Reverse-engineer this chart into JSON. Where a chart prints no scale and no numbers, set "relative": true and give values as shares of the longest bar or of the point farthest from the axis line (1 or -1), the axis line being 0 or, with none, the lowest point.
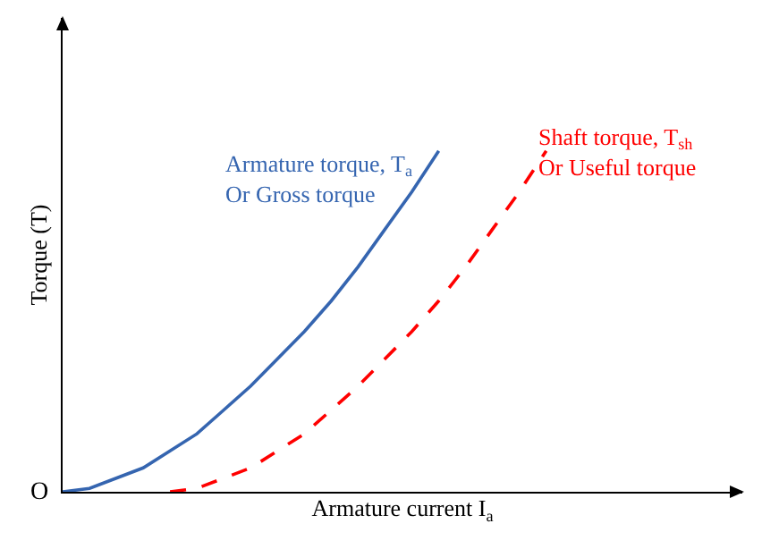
{
  "chart_data": {
    "type": "line",
    "relative": true,
    "xlabel": "Armature current I$_{a}$",
    "ylabel": "Torque (T)",
    "annotations": [
      "O"
    ],
    "categories": [
      null,
      null,
      null,
      null,
      null,
      null,
      null,
      null,
      null,
      null,
      null,
      null,
      null,
      null,
      null,
      null,
      null,
      null,
      null,
      null,
      null,
      null,
      null,
      null,
      null,
      null
    ],
    "series": [
      {
        "name": "Armature torque, T$_{a}$\nOr Gross torque",
        "color": "#3565b0",
        "line_style": "solid",
        "values": [
          0,
          0.01,
          0.04,
          0.07,
          0.12,
          0.17,
          0.24,
          0.31,
          0.39,
          0.47,
          0.56,
          0.66,
          0.77,
          0.88,
          1,
          null,
          null,
          null,
          null,
          null,
          null,
          null,
          null,
          null,
          null,
          null
        ]
      },
      {
        "name": "Shaft torque, T$_{sh}$\nOr Useful torque",
        "color": "#ff0000",
        "line_style": "dashed",
        "values": [
          null,
          null,
          null,
          null,
          0,
          0.01,
          0.04,
          0.07,
          0.12,
          0.17,
          0.24,
          0.31,
          0.39,
          0.47,
          0.56,
          0.66,
          0.77,
          0.88,
          1,
          null,
          null,
          null,
          null,
          null,
          null,
          null
        ]
      }
    ],
    "legend": false,
    "grid": false,
    "marker": "none"
  }
}
